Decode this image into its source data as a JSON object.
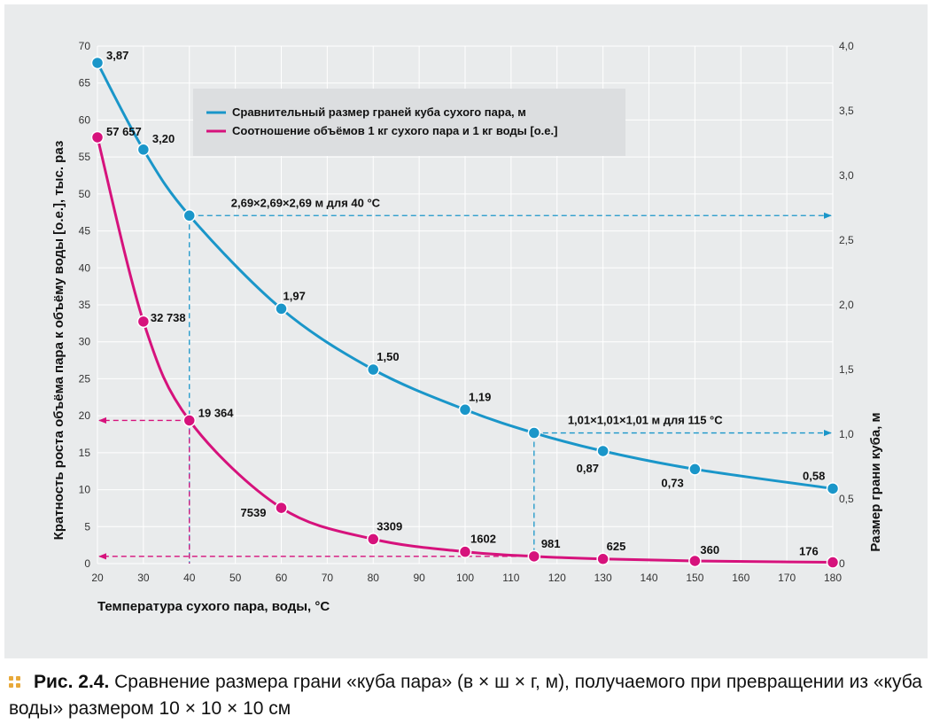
{
  "chart_data": {
    "type": "line",
    "xlabel": "Температура сухого пара, воды, °C",
    "ylabel_left": "Кратность роста объёма пара к объёму воды [о.е.], тыс. раз",
    "ylabel_right": "Размер грани куба, м",
    "x_ticks": [
      20,
      30,
      40,
      50,
      60,
      70,
      80,
      90,
      100,
      110,
      120,
      130,
      140,
      150,
      160,
      170,
      180
    ],
    "y_left_ticks": [
      0,
      5,
      10,
      15,
      20,
      25,
      30,
      35,
      40,
      45,
      50,
      55,
      60,
      65,
      70
    ],
    "y_right_ticks": [
      "0",
      "0,5",
      "1,0",
      "1,5",
      "2,0",
      "2,5",
      "3,0",
      "3,5",
      "4,0"
    ],
    "xlim": [
      20,
      180
    ],
    "ylim_left": [
      0,
      70
    ],
    "ylim_right": [
      0,
      4.0
    ],
    "grid": "vertical and horizontal, white",
    "legend_position": "top-center",
    "series": [
      {
        "name": "Сравнительный размер граней куба сухого пара, м",
        "axis": "right",
        "color": "#1a96c9",
        "x": [
          20,
          30,
          40,
          60,
          80,
          100,
          115,
          130,
          150,
          180
        ],
        "y": [
          3.87,
          3.2,
          2.69,
          1.97,
          1.5,
          1.19,
          1.01,
          0.87,
          0.73,
          0.58
        ],
        "labels": [
          "3,87",
          "3,20",
          "",
          "1,97",
          "1,50",
          "1,19",
          "",
          "0,87",
          "0,73",
          "0,58"
        ]
      },
      {
        "name": "Соотношение объёмов 1 кг сухого пара и 1 кг воды [о.е.]",
        "axis": "left",
        "color": "#d6127c",
        "x": [
          20,
          30,
          40,
          60,
          80,
          100,
          115,
          130,
          150,
          180
        ],
        "y": [
          57.657,
          32.738,
          19.364,
          7.539,
          3.309,
          1.602,
          0.981,
          0.625,
          0.36,
          0.176
        ],
        "labels": [
          "57 657",
          "32 738",
          "19 364",
          "7539",
          "3309",
          "1602",
          "981",
          "625",
          "360",
          "176"
        ]
      }
    ],
    "annotations": [
      {
        "text": "2,69×2,69×2,69 м для 40 °C",
        "x": 40,
        "value": 2.69,
        "series": 0
      },
      {
        "text": "1,01×1,01×1,01 м для 115 °C",
        "x": 115,
        "value": 1.01,
        "series": 0
      }
    ]
  },
  "caption": {
    "figure": "Рис. 2.4.",
    "text": "Сравнение размера грани «куба пара» (в × ш × г, м), получаемого при превращении из «куба воды» размером 10 × 10 × 10 см"
  }
}
